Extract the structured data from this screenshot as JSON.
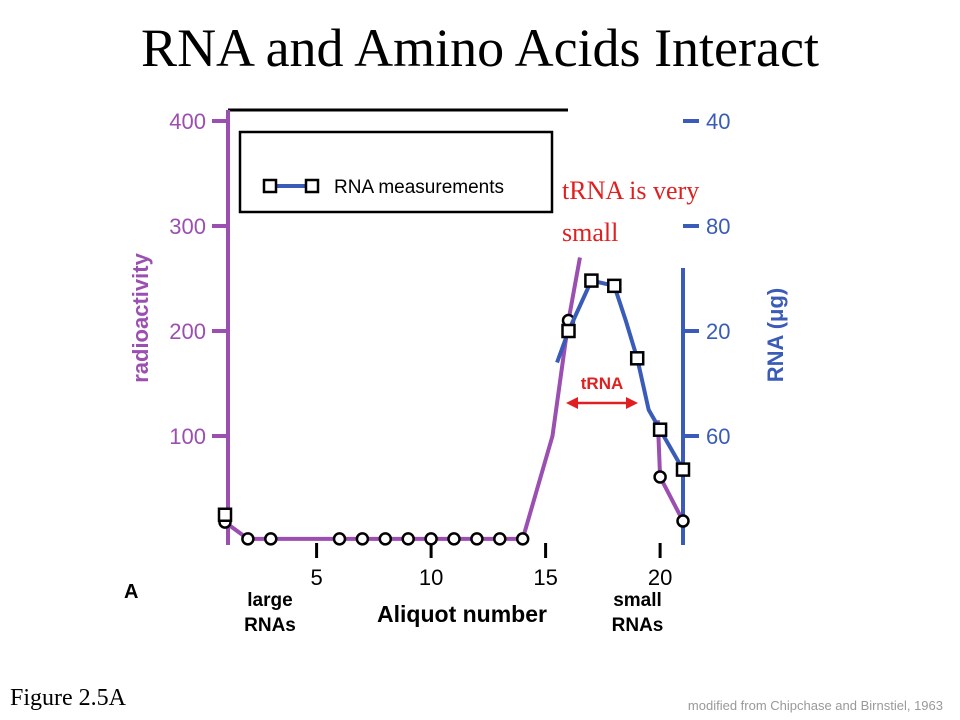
{
  "chart_data": {
    "type": "line",
    "title": "RNA and Amino Acids Interact",
    "ylabel": "radioactivity",
    "y2label": "RNA (μg)",
    "xlabel": "Aliquot number",
    "panel_label": "A",
    "left_note": "large RNAs",
    "right_note": "small RNAs",
    "xlim": [
      1,
      21
    ],
    "xticks": [
      5,
      10,
      15,
      20
    ],
    "ylim": [
      0,
      410
    ],
    "yticks": [
      100,
      200,
      300,
      400
    ],
    "right_axis_labels": [
      "60",
      "20",
      "80",
      "40"
    ],
    "series": [
      {
        "color": "#9b4fb0",
        "marker": "circle",
        "x": [
          1,
          2,
          3,
          6,
          7,
          8,
          9,
          10,
          11,
          12,
          13,
          14,
          15.3,
          16,
          16.5,
          18,
          19.9,
          20,
          21
        ],
        "values": [
          18,
          2,
          2,
          2,
          2,
          2,
          2,
          2,
          2,
          2,
          2,
          2,
          100,
          210,
          270,
          null,
          115,
          61,
          19
        ]
      },
      {
        "name": "RNA measurements",
        "color": "#3a5bb8",
        "marker": "square",
        "x": [
          1,
          8,
          15.5,
          16,
          17,
          18,
          18.5,
          19,
          19.5,
          20,
          21
        ],
        "values": [
          25,
          null,
          170,
          200,
          248,
          243,
          210,
          174,
          125,
          106,
          68
        ]
      }
    ],
    "annotation": "tRNA is very small",
    "range_label": "tRNA",
    "figure_label": "Figure 2.5A",
    "credit": "modified from Chipchase and Birnstiel, 1963"
  }
}
